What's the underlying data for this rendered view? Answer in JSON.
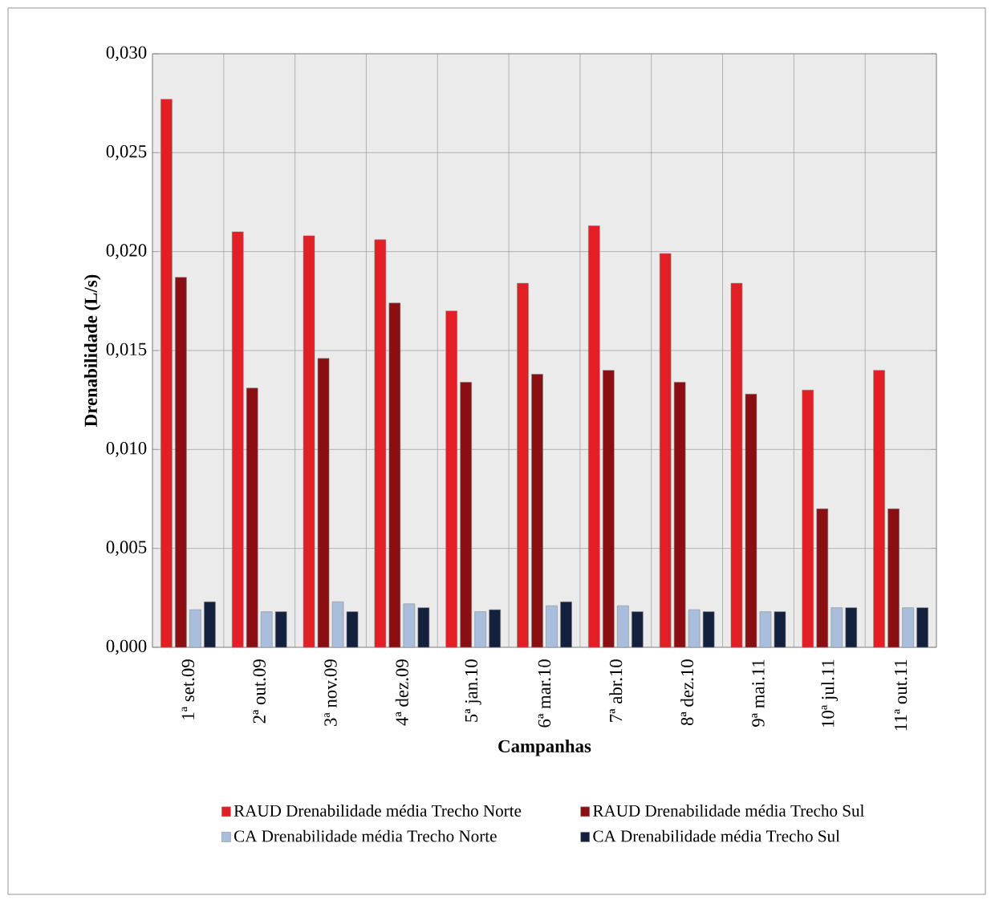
{
  "chart_data": {
    "type": "bar",
    "xlabel": "Campanhas",
    "ylabel": "Drenabilidade  (L/s)",
    "categories": [
      "1ª set.09",
      "2ª out.09",
      "3ª nov.09",
      "4ª dez.09",
      "5ª jan.10",
      "6ª mar.10",
      "7ª abr.10",
      "8ª dez.10",
      "9ª mai.11",
      "10ª jul.11",
      "11ª out.11"
    ],
    "series": [
      {
        "name": "RAUD Drenabilidade média Trecho Norte",
        "color": "#e31e24",
        "values": [
          0.0277,
          0.021,
          0.0208,
          0.0206,
          0.017,
          0.0184,
          0.0213,
          0.0199,
          0.0184,
          0.013,
          0.014
        ]
      },
      {
        "name": "RAUD  Drenabilidade média Trecho Sul",
        "color": "#8b0e12",
        "values": [
          0.0187,
          0.0131,
          0.0146,
          0.0174,
          0.0134,
          0.0138,
          0.014,
          0.0134,
          0.0128,
          0.007,
          0.007
        ]
      },
      {
        "name": "CA Drenabilidade média Trecho Norte",
        "color": "#a9bedc",
        "values": [
          0.0019,
          0.0018,
          0.0023,
          0.0022,
          0.0018,
          0.0021,
          0.0021,
          0.0019,
          0.0018,
          0.002,
          0.002
        ]
      },
      {
        "name": "CA Drenabilidade média Trecho Sul",
        "color": "#13213f",
        "values": [
          0.0023,
          0.0018,
          0.0018,
          0.002,
          0.0019,
          0.0023,
          0.0018,
          0.0018,
          0.0018,
          0.002,
          0.002
        ]
      }
    ],
    "ylim": [
      0,
      0.03
    ],
    "yticks": [
      {
        "value": 0,
        "label": "0,000"
      },
      {
        "value": 0.005,
        "label": "0,005"
      },
      {
        "value": 0.01,
        "label": "0,010"
      },
      {
        "value": 0.015,
        "label": "0,015"
      },
      {
        "value": 0.02,
        "label": "0,020"
      },
      {
        "value": 0.025,
        "label": "0,025"
      },
      {
        "value": 0.03,
        "label": "0,030"
      }
    ],
    "grid": true,
    "legend": "bottom"
  }
}
